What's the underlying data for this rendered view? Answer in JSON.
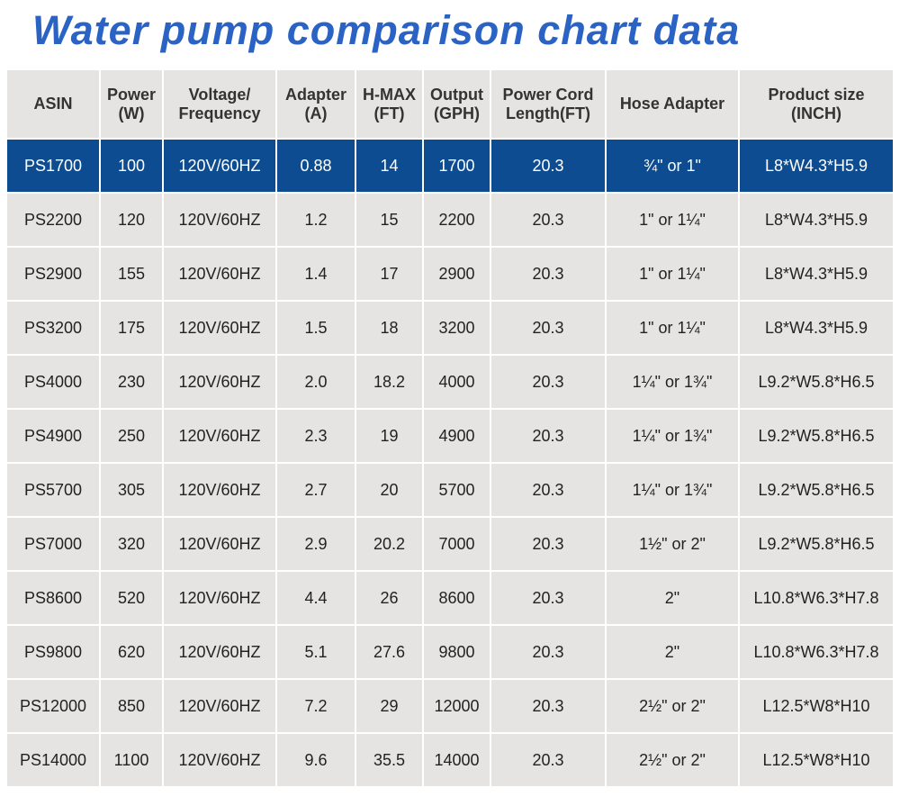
{
  "title": "Water pump comparison chart data",
  "columns": [
    "ASIN",
    "Power\n(W)",
    "Voltage/\nFrequency",
    "Adapter\n(A)",
    "H-MAX\n(FT)",
    "Output\n(GPH)",
    "Power Cord\nLength(FT)",
    "Hose Adapter",
    "Product size\n(INCH)"
  ],
  "highlight_row": 0,
  "rows": [
    [
      "PS1700",
      "100",
      "120V/60HZ",
      "0.88",
      "14",
      "1700",
      "20.3",
      "¾\" or 1\"",
      "L8*W4.3*H5.9"
    ],
    [
      "PS2200",
      "120",
      "120V/60HZ",
      "1.2",
      "15",
      "2200",
      "20.3",
      "1\" or 1¼\"",
      "L8*W4.3*H5.9"
    ],
    [
      "PS2900",
      "155",
      "120V/60HZ",
      "1.4",
      "17",
      "2900",
      "20.3",
      "1\" or 1¼\"",
      "L8*W4.3*H5.9"
    ],
    [
      "PS3200",
      "175",
      "120V/60HZ",
      "1.5",
      "18",
      "3200",
      "20.3",
      "1\" or 1¼\"",
      "L8*W4.3*H5.9"
    ],
    [
      "PS4000",
      "230",
      "120V/60HZ",
      "2.0",
      "18.2",
      "4000",
      "20.3",
      "1¼\" or 1¾\"",
      "L9.2*W5.8*H6.5"
    ],
    [
      "PS4900",
      "250",
      "120V/60HZ",
      "2.3",
      "19",
      "4900",
      "20.3",
      "1¼\" or 1¾\"",
      "L9.2*W5.8*H6.5"
    ],
    [
      "PS5700",
      "305",
      "120V/60HZ",
      "2.7",
      "20",
      "5700",
      "20.3",
      "1¼\" or 1¾\"",
      "L9.2*W5.8*H6.5"
    ],
    [
      "PS7000",
      "320",
      "120V/60HZ",
      "2.9",
      "20.2",
      "7000",
      "20.3",
      "1½\" or 2\"",
      "L9.2*W5.8*H6.5"
    ],
    [
      "PS8600",
      "520",
      "120V/60HZ",
      "4.4",
      "26",
      "8600",
      "20.3",
      "2\"",
      "L10.8*W6.3*H7.8"
    ],
    [
      "PS9800",
      "620",
      "120V/60HZ",
      "5.1",
      "27.6",
      "9800",
      "20.3",
      "2\"",
      "L10.8*W6.3*H7.8"
    ],
    [
      "PS12000",
      "850",
      "120V/60HZ",
      "7.2",
      "29",
      "12000",
      "20.3",
      "2½\" or 2\"",
      "L12.5*W8*H10"
    ],
    [
      "PS14000",
      "1100",
      "120V/60HZ",
      "9.6",
      "35.5",
      "14000",
      "20.3",
      "2½\" or 2\"",
      "L12.5*W8*H10"
    ]
  ],
  "colors": {
    "title": "#2a63c4",
    "highlight_bg": "#0d4c91",
    "highlight_text": "#ffffff",
    "cell_bg": "#e6e3e3"
  }
}
